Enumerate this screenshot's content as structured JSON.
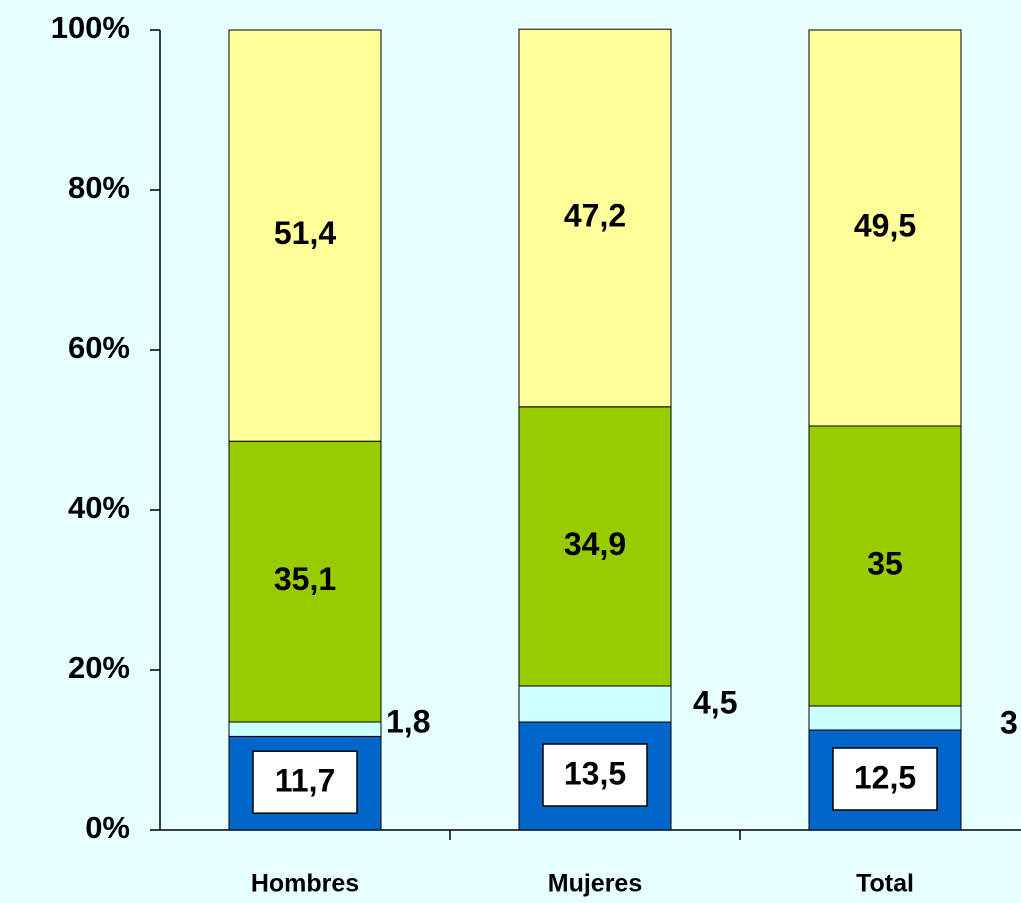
{
  "chart_data": {
    "type": "stacked_bar",
    "categories": [
      "Hombres",
      "Mujeres",
      "Total"
    ],
    "series": [
      {
        "color": "#0066cc",
        "values": [
          11.7,
          13.5,
          12.5
        ],
        "value_labels": [
          "11,7",
          "13,5",
          "12,5"
        ]
      },
      {
        "color": "#ccffff",
        "values": [
          1.8,
          4.5,
          3
        ],
        "value_labels": [
          "1,8",
          "4,5",
          "3"
        ]
      },
      {
        "color": "#99cc00",
        "values": [
          35.1,
          34.9,
          35
        ],
        "value_labels": [
          "35,1",
          "34,9",
          "35"
        ]
      },
      {
        "color": "#ffff99",
        "values": [
          51.4,
          47.2,
          49.5
        ],
        "value_labels": [
          "51,4",
          "47,2",
          "49,5"
        ]
      }
    ],
    "ylim": [
      0,
      100
    ],
    "yticks": [
      {
        "value": 0,
        "label": "0%"
      },
      {
        "value": 20,
        "label": "20%"
      },
      {
        "value": 40,
        "label": "40%"
      },
      {
        "value": 60,
        "label": "60%"
      },
      {
        "value": 80,
        "label": "80%"
      },
      {
        "value": 100,
        "label": "100%"
      }
    ]
  }
}
